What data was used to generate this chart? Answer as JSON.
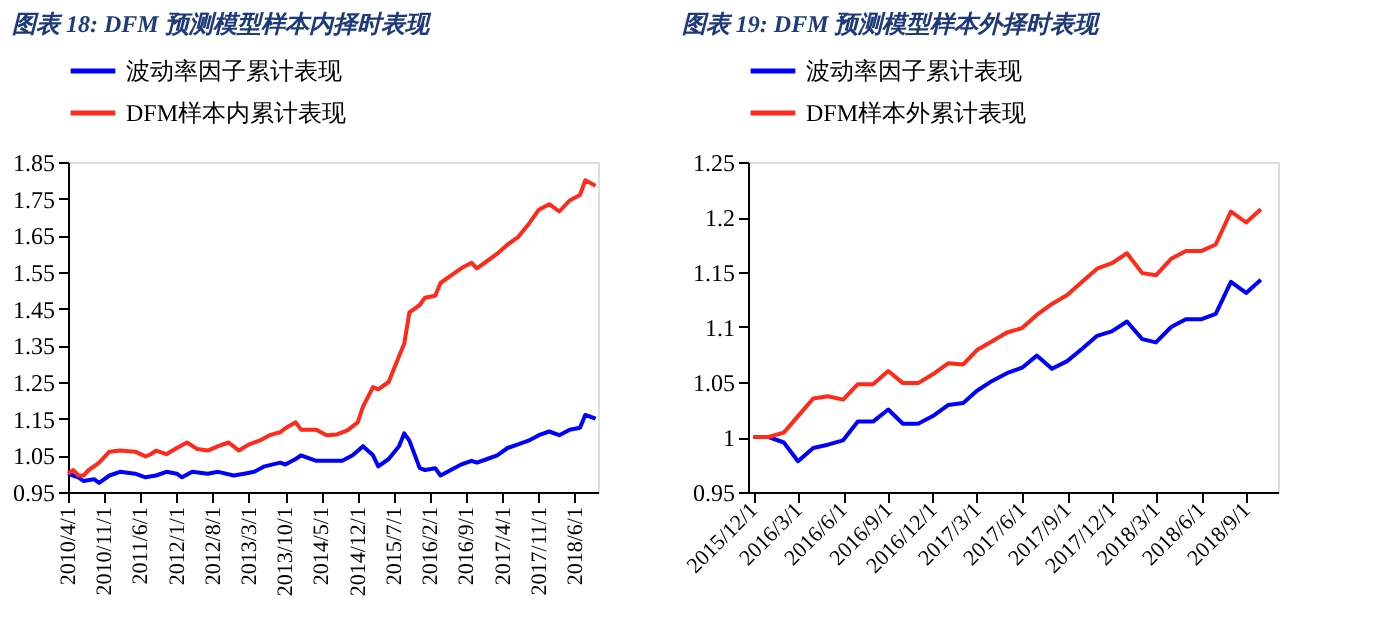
{
  "chart_data": [
    {
      "type": "line",
      "title": "图表 18: DFM 预测模型样本内择时表现",
      "legend": "top",
      "grid": false,
      "line_style": "solid",
      "xlim": [
        "2010-04-01",
        "2018-10-15"
      ],
      "xticks": [
        {
          "value": "2010-04-01",
          "label": "2010/4/1"
        },
        {
          "value": "2010-11-01",
          "label": "2010/11/1"
        },
        {
          "value": "2011-06-01",
          "label": "2011/6/1"
        },
        {
          "value": "2012-01-01",
          "label": "2012/1/1"
        },
        {
          "value": "2012-08-01",
          "label": "2012/8/1"
        },
        {
          "value": "2013-03-01",
          "label": "2013/3/1"
        },
        {
          "value": "2013-10-01",
          "label": "2013/10/1"
        },
        {
          "value": "2014-05-01",
          "label": "2014/5/1"
        },
        {
          "value": "2014-12-01",
          "label": "2014/12/1"
        },
        {
          "value": "2015-07-01",
          "label": "2015/7/1"
        },
        {
          "value": "2016-02-01",
          "label": "2016/2/1"
        },
        {
          "value": "2016-09-01",
          "label": "2016/9/1"
        },
        {
          "value": "2017-04-01",
          "label": "2017/4/1"
        },
        {
          "value": "2017-11-01",
          "label": "2017/11/1"
        },
        {
          "value": "2018-06-01",
          "label": "2018/6/1"
        }
      ],
      "ylim": [
        0.95,
        1.85
      ],
      "yticks": [
        {
          "value": 0.95,
          "label": "0.95"
        },
        {
          "value": 1.05,
          "label": "1.05"
        },
        {
          "value": 1.15,
          "label": "1.15"
        },
        {
          "value": 1.25,
          "label": "1.25"
        },
        {
          "value": 1.35,
          "label": "1.35"
        },
        {
          "value": 1.45,
          "label": "1.45"
        },
        {
          "value": 1.55,
          "label": "1.55"
        },
        {
          "value": 1.65,
          "label": "1.65"
        },
        {
          "value": 1.75,
          "label": "1.75"
        },
        {
          "value": 1.85,
          "label": "1.85"
        }
      ],
      "series": [
        {
          "name": "波动率因子累计表现",
          "color": "#0000ff",
          "x": [
            "2010-04",
            "2010-05",
            "2010-06",
            "2010-07",
            "2010-09",
            "2010-10",
            "2010-12",
            "2011-02",
            "2011-05",
            "2011-07",
            "2011-09",
            "2011-11",
            "2012-01",
            "2012-02",
            "2012-04",
            "2012-07",
            "2012-09",
            "2012-12",
            "2013-02",
            "2013-04",
            "2013-06",
            "2013-09",
            "2013-10",
            "2013-12",
            "2014-01",
            "2014-04",
            "2014-07",
            "2014-09",
            "2014-11",
            "2015-01",
            "2015-03",
            "2015-04",
            "2015-06",
            "2015-08",
            "2015-09",
            "2015-10",
            "2015-12",
            "2016-01",
            "2016-03",
            "2016-04",
            "2016-06",
            "2016-08",
            "2016-10",
            "2016-11",
            "2017-01",
            "2017-03",
            "2017-05",
            "2017-07",
            "2017-09",
            "2017-11",
            "2018-01",
            "2018-03",
            "2018-05",
            "2018-07",
            "2018-08",
            "2018-10"
          ],
          "values": [
            1.0,
            0.995,
            0.99,
            0.98,
            0.985,
            0.975,
            0.995,
            1.005,
            1.0,
            0.99,
            0.995,
            1.005,
            1.0,
            0.99,
            1.005,
            1.0,
            1.005,
            0.995,
            1.0,
            1.005,
            1.02,
            1.03,
            1.025,
            1.04,
            1.05,
            1.035,
            1.035,
            1.035,
            1.05,
            1.075,
            1.05,
            1.02,
            1.04,
            1.075,
            1.11,
            1.09,
            1.015,
            1.01,
            1.015,
            0.995,
            1.01,
            1.025,
            1.035,
            1.03,
            1.04,
            1.05,
            1.07,
            1.08,
            1.09,
            1.105,
            1.115,
            1.105,
            1.12,
            1.125,
            1.16,
            1.15
          ]
        },
        {
          "name": "DFM样本内累计表现",
          "color": "#ff2a1a",
          "x": [
            "2010-04",
            "2010-05",
            "2010-06",
            "2010-07",
            "2010-08",
            "2010-09",
            "2010-10",
            "2010-12",
            "2011-02",
            "2011-05",
            "2011-07",
            "2011-08",
            "2011-09",
            "2011-11",
            "2012-01",
            "2012-03",
            "2012-05",
            "2012-07",
            "2012-09",
            "2012-11",
            "2013-01",
            "2013-03",
            "2013-05",
            "2013-07",
            "2013-09",
            "2013-10",
            "2013-12",
            "2014-01",
            "2014-04",
            "2014-06",
            "2014-08",
            "2014-10",
            "2014-12",
            "2015-01",
            "2015-03",
            "2015-04",
            "2015-06",
            "2015-08",
            "2015-09",
            "2015-10",
            "2015-12",
            "2016-01",
            "2016-03",
            "2016-04",
            "2016-06",
            "2016-08",
            "2016-10",
            "2016-11",
            "2017-01",
            "2017-03",
            "2017-05",
            "2017-07",
            "2017-09",
            "2017-11",
            "2018-01",
            "2018-03",
            "2018-05",
            "2018-07",
            "2018-08",
            "2018-10"
          ],
          "values": [
            1.0,
            1.01,
            0.995,
            0.995,
            1.01,
            1.02,
            1.03,
            1.06,
            1.063,
            1.06,
            1.047,
            1.053,
            1.063,
            1.053,
            1.07,
            1.085,
            1.067,
            1.063,
            1.075,
            1.085,
            1.063,
            1.08,
            1.09,
            1.105,
            1.113,
            1.124,
            1.14,
            1.12,
            1.12,
            1.105,
            1.107,
            1.118,
            1.14,
            1.183,
            1.236,
            1.23,
            1.25,
            1.32,
            1.355,
            1.44,
            1.46,
            1.48,
            1.485,
            1.52,
            1.54,
            1.56,
            1.575,
            1.56,
            1.58,
            1.6,
            1.625,
            1.645,
            1.68,
            1.72,
            1.735,
            1.715,
            1.745,
            1.76,
            1.8,
            1.785
          ]
        }
      ]
    },
    {
      "type": "line",
      "title": "图表 19: DFM 预测模型样本外择时表现",
      "legend": "top",
      "grid": false,
      "line_style": "solid",
      "xlim": [
        "2015-11-20",
        "2018-11-05"
      ],
      "xticks": [
        {
          "value": "2015-12-01",
          "label": "2015/12/1"
        },
        {
          "value": "2016-03-01",
          "label": "2016/3/1"
        },
        {
          "value": "2016-06-01",
          "label": "2016/6/1"
        },
        {
          "value": "2016-09-01",
          "label": "2016/9/1"
        },
        {
          "value": "2016-12-01",
          "label": "2016/12/1"
        },
        {
          "value": "2017-03-01",
          "label": "2017/3/1"
        },
        {
          "value": "2017-06-01",
          "label": "2017/6/1"
        },
        {
          "value": "2017-09-01",
          "label": "2017/9/1"
        },
        {
          "value": "2017-12-01",
          "label": "2017/12/1"
        },
        {
          "value": "2018-03-01",
          "label": "2018/3/1"
        },
        {
          "value": "2018-06-01",
          "label": "2018/6/1"
        },
        {
          "value": "2018-09-01",
          "label": "2018/9/1"
        }
      ],
      "ylim": [
        0.95,
        1.25
      ],
      "yticks": [
        0.95,
        1,
        1.05,
        1.1,
        1.15,
        1.2,
        1.25
      ],
      "series": [
        {
          "name": "波动率因子累计表现",
          "color": "#0000ff",
          "x": [
            "2015-12",
            "2016-01",
            "2016-02",
            "2016-03",
            "2016-04",
            "2016-05",
            "2016-06",
            "2016-07",
            "2016-08",
            "2016-09",
            "2016-10",
            "2016-11",
            "2016-12",
            "2017-01",
            "2017-02",
            "2017-03",
            "2017-04",
            "2017-05",
            "2017-06",
            "2017-07",
            "2017-08",
            "2017-09",
            "2017-10",
            "2017-11",
            "2017-12",
            "2018-01",
            "2018-02",
            "2018-03",
            "2018-04",
            "2018-05",
            "2018-06",
            "2018-07",
            "2018-08",
            "2018-09",
            "2018-10"
          ],
          "values": [
            1.0,
            1.0,
            0.995,
            0.978,
            0.99,
            0.993,
            0.997,
            1.014,
            1.014,
            1.025,
            1.012,
            1.012,
            1.019,
            1.029,
            1.031,
            1.042,
            1.051,
            1.058,
            1.063,
            1.074,
            1.062,
            1.069,
            1.08,
            1.092,
            1.096,
            1.105,
            1.089,
            1.086,
            1.1,
            1.107,
            1.107,
            1.112,
            1.141,
            1.131,
            1.143
          ]
        },
        {
          "name": "DFM样本外累计表现",
          "color": "#ff2a1a",
          "x": [
            "2015-12",
            "2016-01",
            "2016-02",
            "2016-03",
            "2016-04",
            "2016-05",
            "2016-06",
            "2016-07",
            "2016-08",
            "2016-09",
            "2016-10",
            "2016-11",
            "2016-12",
            "2017-01",
            "2017-02",
            "2017-03",
            "2017-04",
            "2017-05",
            "2017-06",
            "2017-07",
            "2017-08",
            "2017-09",
            "2017-10",
            "2017-11",
            "2017-12",
            "2018-01",
            "2018-02",
            "2018-03",
            "2018-04",
            "2018-05",
            "2018-06",
            "2018-07",
            "2018-08",
            "2018-09",
            "2018-10"
          ],
          "values": [
            1.0,
            1.0,
            1.004,
            1.019,
            1.035,
            1.037,
            1.034,
            1.048,
            1.048,
            1.06,
            1.049,
            1.049,
            1.057,
            1.067,
            1.066,
            1.079,
            1.087,
            1.095,
            1.099,
            1.111,
            1.121,
            1.129,
            1.141,
            1.153,
            1.158,
            1.167,
            1.149,
            1.147,
            1.162,
            1.169,
            1.169,
            1.175,
            1.205,
            1.195,
            1.207
          ]
        }
      ]
    }
  ]
}
